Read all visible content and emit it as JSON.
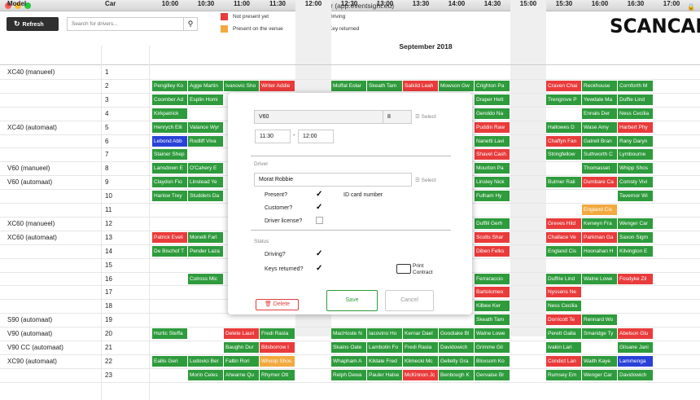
{
  "window": {
    "title": "ScanCar (app.eventsight.eu)"
  },
  "toolbar": {
    "refresh_label": "Refresh",
    "search_placeholder": "Search for drivers..."
  },
  "legend": [
    {
      "label": "Not present yet",
      "color": "#e93b3b"
    },
    {
      "label": "Present on the venue",
      "color": "#f2a93f"
    },
    {
      "label": "Driving",
      "color": "#2a41d8"
    },
    {
      "label": "Key returned",
      "color": "#2e9b3c"
    }
  ],
  "logo": "SCANCAR",
  "grid": {
    "month": "September 2018",
    "model_header": "Model",
    "car_header": "Car",
    "hours": [
      "10:00",
      "10:30",
      "11:00",
      "11:30",
      "12:00",
      "12:30",
      "13:00",
      "13:30",
      "14:00",
      "14:30",
      "15:00",
      "15:30",
      "16:00",
      "16:30",
      "17:00"
    ],
    "rows": [
      {
        "model": "XC40 (manueel)",
        "car": "1"
      },
      {
        "model": "",
        "car": "2"
      },
      {
        "model": "",
        "car": "3"
      },
      {
        "model": "",
        "car": "4"
      },
      {
        "model": "XC40 (automaat)",
        "car": "5"
      },
      {
        "model": "",
        "car": "6"
      },
      {
        "model": "",
        "car": "7"
      },
      {
        "model": "V60 (manueel)",
        "car": "8"
      },
      {
        "model": "V60 (automaat)",
        "car": "9"
      },
      {
        "model": "",
        "car": "10"
      },
      {
        "model": "",
        "car": "11"
      },
      {
        "model": "XC60 (manueel)",
        "car": "12"
      },
      {
        "model": "XC60 (automaat)",
        "car": "13"
      },
      {
        "model": "",
        "car": "14"
      },
      {
        "model": "",
        "car": "15"
      },
      {
        "model": "",
        "car": "16"
      },
      {
        "model": "",
        "car": "17"
      },
      {
        "model": "",
        "car": "18"
      },
      {
        "model": "S90 (automaat)",
        "car": "19"
      },
      {
        "model": "V90 (automaat)",
        "car": "20"
      },
      {
        "model": "V90 CC (automaat)",
        "car": "21"
      },
      {
        "model": "XC90 (automaat)",
        "car": "22"
      },
      {
        "model": "",
        "car": "23"
      }
    ],
    "bookings": [
      {
        "row": 1,
        "s": 0,
        "e": 1,
        "c": "g",
        "t": "Pengilley Ko"
      },
      {
        "row": 1,
        "s": 1,
        "e": 2,
        "c": "g",
        "t": "Agge Martin"
      },
      {
        "row": 1,
        "s": 2,
        "e": 3,
        "c": "g",
        "t": "Ivanovic Sho"
      },
      {
        "row": 1,
        "s": 3,
        "e": 4,
        "c": "r",
        "t": "Writer Addie"
      },
      {
        "row": 1,
        "s": 5,
        "e": 6,
        "c": "g",
        "t": "Moffat Eolar"
      },
      {
        "row": 1,
        "s": 6,
        "e": 7,
        "c": "g",
        "t": "Skeath Tam"
      },
      {
        "row": 1,
        "s": 7,
        "e": 8,
        "c": "r",
        "t": "Salkild Leah"
      },
      {
        "row": 1,
        "s": 8,
        "e": 9,
        "c": "g",
        "t": "Mowson Gw"
      },
      {
        "row": 1,
        "s": 9,
        "e": 10,
        "c": "g",
        "t": "Crighton Pa"
      },
      {
        "row": 1,
        "s": 11,
        "e": 12,
        "c": "r",
        "t": "Craven Chai"
      },
      {
        "row": 1,
        "s": 12,
        "e": 13,
        "c": "g",
        "t": "Reckhouse"
      },
      {
        "row": 1,
        "s": 13,
        "e": 14,
        "c": "g",
        "t": "Cornforth M"
      },
      {
        "row": 2,
        "s": 0,
        "e": 1,
        "c": "g",
        "t": "Coomber Ad"
      },
      {
        "row": 2,
        "s": 1,
        "e": 2,
        "c": "g",
        "t": "Esplin Homi"
      },
      {
        "row": 2,
        "s": 9,
        "e": 10,
        "c": "g",
        "t": "Draper Hett"
      },
      {
        "row": 2,
        "s": 11,
        "e": 12,
        "c": "g",
        "t": "Trengrove P"
      },
      {
        "row": 2,
        "s": 12,
        "e": 13,
        "c": "g",
        "t": "Yewdale Ma"
      },
      {
        "row": 2,
        "s": 13,
        "e": 14,
        "c": "g",
        "t": "Duffie Lind"
      },
      {
        "row": 3,
        "s": 0,
        "e": 1,
        "c": "g",
        "t": "Kirkpatrick"
      },
      {
        "row": 3,
        "s": 9,
        "e": 10,
        "c": "g",
        "t": "Geroldo Na"
      },
      {
        "row": 3,
        "s": 12,
        "e": 13,
        "c": "g",
        "t": "Ennals Der"
      },
      {
        "row": 3,
        "s": 13,
        "e": 14,
        "c": "g",
        "t": "Ness Cecilia"
      },
      {
        "row": 4,
        "s": 0,
        "e": 1,
        "c": "g",
        "t": "Henrych Elli"
      },
      {
        "row": 4,
        "s": 1,
        "e": 2,
        "c": "g",
        "t": "Valance Wyr"
      },
      {
        "row": 4,
        "s": 9,
        "e": 10,
        "c": "r",
        "t": "Puddin Raw"
      },
      {
        "row": 4,
        "s": 11,
        "e": 12,
        "c": "g",
        "t": "Hallowes D"
      },
      {
        "row": 4,
        "s": 12,
        "e": 13,
        "c": "g",
        "t": "Wase Amy"
      },
      {
        "row": 4,
        "s": 13,
        "e": 14,
        "c": "r",
        "t": "Harbert Phy"
      },
      {
        "row": 5,
        "s": 0,
        "e": 1,
        "c": "b",
        "t": "Lebond Abb"
      },
      {
        "row": 5,
        "s": 1,
        "e": 2,
        "c": "g",
        "t": "Rodliff Viva"
      },
      {
        "row": 5,
        "s": 9,
        "e": 10,
        "c": "g",
        "t": "Nanetti Lavi"
      },
      {
        "row": 5,
        "s": 11,
        "e": 12,
        "c": "r",
        "t": "Chaffyn Fan"
      },
      {
        "row": 5,
        "s": 12,
        "e": 13,
        "c": "g",
        "t": "Gatrell Bran"
      },
      {
        "row": 5,
        "s": 13,
        "e": 14,
        "c": "g",
        "t": "Rany Daryn"
      },
      {
        "row": 6,
        "s": 0,
        "e": 1,
        "c": "g",
        "t": "Stainer Shep"
      },
      {
        "row": 6,
        "s": 9,
        "e": 10,
        "c": "r",
        "t": "Shavel Cash"
      },
      {
        "row": 6,
        "s": 11,
        "e": 12,
        "c": "g",
        "t": "Stringfellow"
      },
      {
        "row": 6,
        "s": 12,
        "e": 13,
        "c": "g",
        "t": "Suthworth C"
      },
      {
        "row": 6,
        "s": 13,
        "e": 14,
        "c": "g",
        "t": "Lymbourne"
      },
      {
        "row": 7,
        "s": 0,
        "e": 1,
        "c": "g",
        "t": "Lansdown E"
      },
      {
        "row": 7,
        "s": 1,
        "e": 2,
        "c": "g",
        "t": "O'Cahery E"
      },
      {
        "row": 7,
        "s": 9,
        "e": 10,
        "c": "g",
        "t": "Mourton Pa"
      },
      {
        "row": 7,
        "s": 12,
        "e": 13,
        "c": "g",
        "t": "Thomasset"
      },
      {
        "row": 7,
        "s": 13,
        "e": 14,
        "c": "g",
        "t": "Whipp Shos"
      },
      {
        "row": 8,
        "s": 0,
        "e": 1,
        "c": "g",
        "t": "Claydon Fio"
      },
      {
        "row": 8,
        "s": 1,
        "e": 2,
        "c": "g",
        "t": "Linstead Ye"
      },
      {
        "row": 8,
        "s": 9,
        "e": 10,
        "c": "g",
        "t": "Linsley Nick"
      },
      {
        "row": 8,
        "s": 11,
        "e": 12,
        "c": "g",
        "t": "Bulmer Rali"
      },
      {
        "row": 8,
        "s": 12,
        "e": 13,
        "c": "r",
        "t": "Dumbare Ca"
      },
      {
        "row": 8,
        "s": 13,
        "e": 14,
        "c": "g",
        "t": "Comsty Vivi"
      },
      {
        "row": 9,
        "s": 0,
        "e": 1,
        "c": "g",
        "t": "Harlow Trey"
      },
      {
        "row": 9,
        "s": 1,
        "e": 2,
        "c": "g",
        "t": "Studders Da"
      },
      {
        "row": 9,
        "s": 9,
        "e": 10,
        "c": "g",
        "t": "Fulham Hy"
      },
      {
        "row": 9,
        "s": 13,
        "e": 14,
        "c": "g",
        "t": "Tavernor Wi"
      },
      {
        "row": 10,
        "s": 12,
        "e": 13,
        "c": "o",
        "t": "England Cis"
      },
      {
        "row": 11,
        "s": 9,
        "e": 10,
        "c": "g",
        "t": "Duffill Gerh"
      },
      {
        "row": 11,
        "s": 11,
        "e": 12,
        "c": "r",
        "t": "Greves Hild"
      },
      {
        "row": 11,
        "s": 12,
        "e": 13,
        "c": "g",
        "t": "Kenwyn Fra"
      },
      {
        "row": 11,
        "s": 13,
        "e": 14,
        "c": "g",
        "t": "Wenger Car"
      },
      {
        "row": 12,
        "s": 0,
        "e": 1,
        "c": "r",
        "t": "Patrick Eveli"
      },
      {
        "row": 12,
        "s": 1,
        "e": 2,
        "c": "g",
        "t": "Monelli Farl"
      },
      {
        "row": 12,
        "s": 9,
        "e": 10,
        "c": "r",
        "t": "Scolts Shar"
      },
      {
        "row": 12,
        "s": 11,
        "e": 12,
        "c": "r",
        "t": "Challace Ve"
      },
      {
        "row": 12,
        "s": 12,
        "e": 13,
        "c": "r",
        "t": "Parkman Ga"
      },
      {
        "row": 12,
        "s": 13,
        "e": 14,
        "c": "g",
        "t": "Saxon Sigm"
      },
      {
        "row": 13,
        "s": 0,
        "e": 1,
        "c": "g",
        "t": "De Bischof T"
      },
      {
        "row": 13,
        "s": 1,
        "e": 2,
        "c": "g",
        "t": "Pender Laza"
      },
      {
        "row": 13,
        "s": 9,
        "e": 10,
        "c": "r",
        "t": "Diben Felks"
      },
      {
        "row": 13,
        "s": 11,
        "e": 12,
        "c": "g",
        "t": "England Cis"
      },
      {
        "row": 13,
        "s": 12,
        "e": 13,
        "c": "g",
        "t": "Hoonahan H"
      },
      {
        "row": 13,
        "s": 13,
        "e": 14,
        "c": "g",
        "t": "Kilvington E"
      },
      {
        "row": 15,
        "s": 1,
        "e": 2,
        "c": "g",
        "t": "Culross Mic"
      },
      {
        "row": 15,
        "s": 9,
        "e": 10,
        "c": "g",
        "t": "Ferraraccio"
      },
      {
        "row": 15,
        "s": 11,
        "e": 12,
        "c": "g",
        "t": "Duffrie Lind"
      },
      {
        "row": 15,
        "s": 12,
        "e": 13,
        "c": "g",
        "t": "Walne Lowe"
      },
      {
        "row": 15,
        "s": 13,
        "e": 14,
        "c": "r",
        "t": "Fosdyke Zil"
      },
      {
        "row": 16,
        "s": 9,
        "e": 10,
        "c": "r",
        "t": "Bartolomeo"
      },
      {
        "row": 16,
        "s": 11,
        "e": 12,
        "c": "r",
        "t": "Nyssens Ne"
      },
      {
        "row": 17,
        "s": 9,
        "e": 10,
        "c": "g",
        "t": "Kilbee Ker"
      },
      {
        "row": 17,
        "s": 11,
        "e": 12,
        "c": "g",
        "t": "Ness Cecilia"
      },
      {
        "row": 18,
        "s": 9,
        "e": 10,
        "c": "g",
        "t": "Skeath Tam"
      },
      {
        "row": 18,
        "s": 11,
        "e": 12,
        "c": "r",
        "t": "Dorricott Te"
      },
      {
        "row": 18,
        "s": 12,
        "e": 13,
        "c": "g",
        "t": "Rennard Wo"
      },
      {
        "row": 19,
        "s": 0,
        "e": 1,
        "c": "g",
        "t": "Hurtic Steffa"
      },
      {
        "row": 19,
        "s": 2,
        "e": 3,
        "c": "r",
        "t": "Delete Lauri"
      },
      {
        "row": 19,
        "s": 3,
        "e": 4,
        "c": "g",
        "t": "Fredi Rasla"
      },
      {
        "row": 19,
        "s": 5,
        "e": 6,
        "c": "g",
        "t": "MacHoste N"
      },
      {
        "row": 19,
        "s": 6,
        "e": 7,
        "c": "g",
        "t": "Iacovino Ho"
      },
      {
        "row": 19,
        "s": 7,
        "e": 8,
        "c": "g",
        "t": "Kernar Dael"
      },
      {
        "row": 19,
        "s": 8,
        "e": 9,
        "c": "g",
        "t": "Goodiake Bl"
      },
      {
        "row": 19,
        "s": 9,
        "e": 10,
        "c": "g",
        "t": "Walne Lowe"
      },
      {
        "row": 19,
        "s": 11,
        "e": 12,
        "c": "g",
        "t": "Perett Galla"
      },
      {
        "row": 19,
        "s": 12,
        "e": 13,
        "c": "g",
        "t": "Smaridge Ty"
      },
      {
        "row": 19,
        "s": 13,
        "e": 14,
        "c": "r",
        "t": "Abelson Glu"
      },
      {
        "row": 20,
        "s": 2,
        "e": 3,
        "c": "g",
        "t": "Baughn Dur"
      },
      {
        "row": 20,
        "s": 3,
        "e": 4,
        "c": "r",
        "t": "Bilsborrow I"
      },
      {
        "row": 20,
        "s": 5,
        "e": 6,
        "c": "g",
        "t": "Skains Oate"
      },
      {
        "row": 20,
        "s": 6,
        "e": 7,
        "c": "g",
        "t": "Lambotin Fo"
      },
      {
        "row": 20,
        "s": 7,
        "e": 8,
        "c": "g",
        "t": "Fredi Rasla"
      },
      {
        "row": 20,
        "s": 8,
        "e": 9,
        "c": "g",
        "t": "Davidowich"
      },
      {
        "row": 20,
        "s": 9,
        "e": 10,
        "c": "g",
        "t": "Grimme Gil"
      },
      {
        "row": 20,
        "s": 11,
        "e": 12,
        "c": "g",
        "t": "Ivakin Lari"
      },
      {
        "row": 20,
        "s": 13,
        "e": 14,
        "c": "g",
        "t": "Glisane Jani"
      },
      {
        "row": 21,
        "s": 0,
        "e": 1,
        "c": "g",
        "t": "Eallis Geri"
      },
      {
        "row": 21,
        "s": 1,
        "e": 2,
        "c": "g",
        "t": "Ludovici Ber"
      },
      {
        "row": 21,
        "s": 2,
        "e": 3,
        "c": "g",
        "t": "Faltin Rori"
      },
      {
        "row": 21,
        "s": 3,
        "e": 4,
        "c": "o",
        "t": "Whoop Shos"
      },
      {
        "row": 21,
        "s": 5,
        "e": 6,
        "c": "g",
        "t": "Whapham A"
      },
      {
        "row": 21,
        "s": 6,
        "e": 7,
        "c": "g",
        "t": "Kildale Fred"
      },
      {
        "row": 21,
        "s": 7,
        "e": 8,
        "c": "g",
        "t": "Klimecki Mc"
      },
      {
        "row": 21,
        "s": 8,
        "e": 9,
        "c": "g",
        "t": "Gelletly Gra"
      },
      {
        "row": 21,
        "s": 9,
        "e": 10,
        "c": "g",
        "t": "Bloxsom Ko"
      },
      {
        "row": 21,
        "s": 11,
        "e": 12,
        "c": "r",
        "t": "Condict Lan"
      },
      {
        "row": 21,
        "s": 12,
        "e": 13,
        "c": "g",
        "t": "Waith Kaye"
      },
      {
        "row": 21,
        "s": 13,
        "e": 14,
        "c": "b",
        "t": "Lammenga"
      },
      {
        "row": 22,
        "s": 1,
        "e": 2,
        "c": "g",
        "t": "Morin Celes"
      },
      {
        "row": 22,
        "s": 2,
        "e": 3,
        "c": "g",
        "t": "Ahearne Qu"
      },
      {
        "row": 22,
        "s": 3,
        "e": 4,
        "c": "g",
        "t": "Rhymer Ott"
      },
      {
        "row": 22,
        "s": 5,
        "e": 6,
        "c": "g",
        "t": "Relph Dewa"
      },
      {
        "row": 22,
        "s": 6,
        "e": 7,
        "c": "g",
        "t": "Pauler Halse"
      },
      {
        "row": 22,
        "s": 7,
        "e": 8,
        "c": "r",
        "t": "McKinnon Jc"
      },
      {
        "row": 22,
        "s": 8,
        "e": 9,
        "c": "g",
        "t": "Benbough K"
      },
      {
        "row": 22,
        "s": 9,
        "e": 10,
        "c": "g",
        "t": "Gervaise Br"
      },
      {
        "row": 22,
        "s": 11,
        "e": 12,
        "c": "g",
        "t": "Rumsey Em"
      },
      {
        "row": 22,
        "s": 12,
        "e": 13,
        "c": "g",
        "t": "Wenger Car"
      },
      {
        "row": 22,
        "s": 13,
        "e": 14,
        "c": "g",
        "t": "Davidowich"
      }
    ]
  },
  "dialog": {
    "model_value": "V60",
    "car_value": "8",
    "select_label": "Select",
    "time_from": "11:30",
    "time_sep": "-",
    "time_to": "12:00",
    "driver_section": "Driver",
    "driver_value": "Morat Robbie",
    "present_label": "Present?",
    "id_card_label": "ID card number",
    "customer_label": "Customer?",
    "license_label": "Driver license?",
    "status_section": "Status",
    "driving_label": "Driving?",
    "keys_label": "Keys returned?",
    "print_label": "Print Contract",
    "delete_label": "Delete",
    "save_label": "Save",
    "cancel_label": "Cancel"
  }
}
